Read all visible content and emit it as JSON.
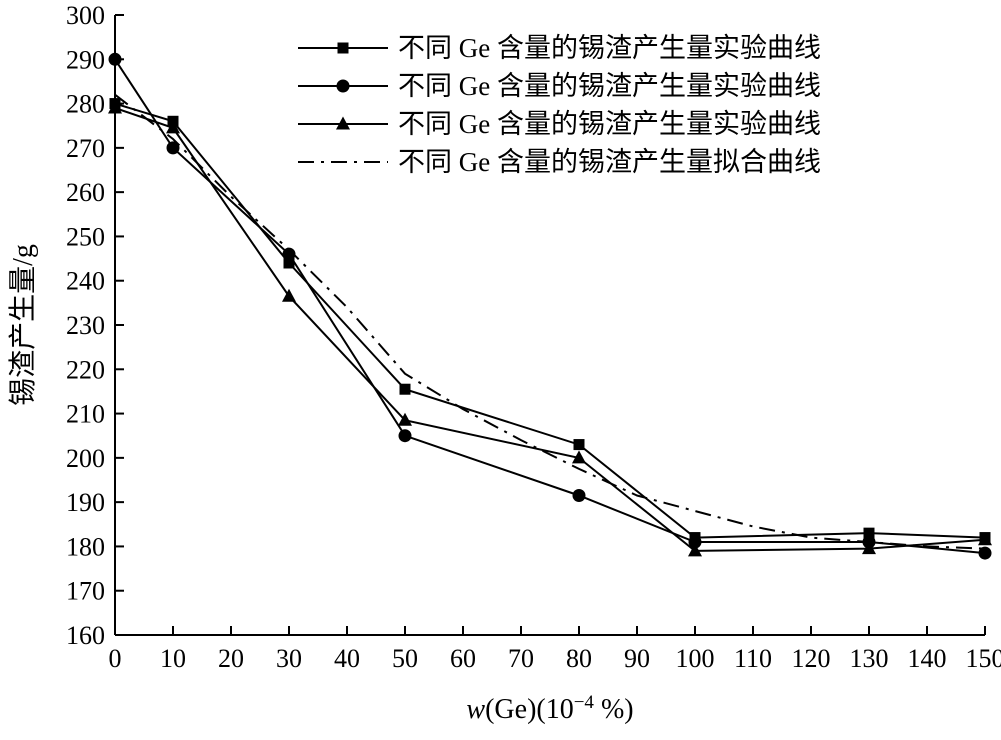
{
  "chart_data": {
    "type": "line",
    "title": "",
    "xlabel": {
      "var": "w",
      "open": "(Ge)(10",
      "exp": "−4",
      "close": " %)"
    },
    "ylabel": "锡渣产生量/g",
    "xlim": [
      0,
      150
    ],
    "ylim": [
      160,
      300
    ],
    "xticks": [
      0,
      10,
      20,
      30,
      40,
      50,
      60,
      70,
      80,
      90,
      100,
      110,
      120,
      130,
      140,
      150
    ],
    "yticks": [
      160,
      170,
      180,
      190,
      200,
      210,
      220,
      230,
      240,
      250,
      260,
      270,
      280,
      290,
      300
    ],
    "grid": false,
    "legend_position": "top-inside",
    "x": [
      0,
      10,
      30,
      50,
      80,
      100,
      130,
      150
    ],
    "series": [
      {
        "name": "不同 Ge 含量的锡渣产生量实验曲线",
        "marker": "square",
        "line": "solid",
        "values": [
          280,
          276,
          244,
          215.5,
          203,
          182,
          183,
          182
        ]
      },
      {
        "name": "不同 Ge 含量的锡渣产生量实验曲线",
        "marker": "circle",
        "line": "solid",
        "values": [
          290,
          270,
          246,
          205,
          191.5,
          181,
          181,
          178.5
        ]
      },
      {
        "name": "不同 Ge 含量的锡渣产生量实验曲线",
        "marker": "triangle",
        "line": "solid",
        "values": [
          279,
          274.5,
          236.5,
          208.5,
          200,
          179,
          179.5,
          181.5
        ]
      },
      {
        "name": "不同 Ge 含量的锡渣产生量拟合曲线",
        "marker": "none",
        "line": "dashdot",
        "x": [
          0,
          10,
          20,
          30,
          40,
          50,
          60,
          70,
          80,
          90,
          100,
          110,
          120,
          130,
          140,
          150
        ],
        "values": [
          282,
          272,
          259,
          247,
          234,
          219,
          211,
          204,
          197.5,
          191.5,
          188,
          184.5,
          182,
          181,
          180,
          179.5
        ]
      }
    ],
    "colors": {
      "stroke": "#000000",
      "background": "#ffffff"
    }
  }
}
